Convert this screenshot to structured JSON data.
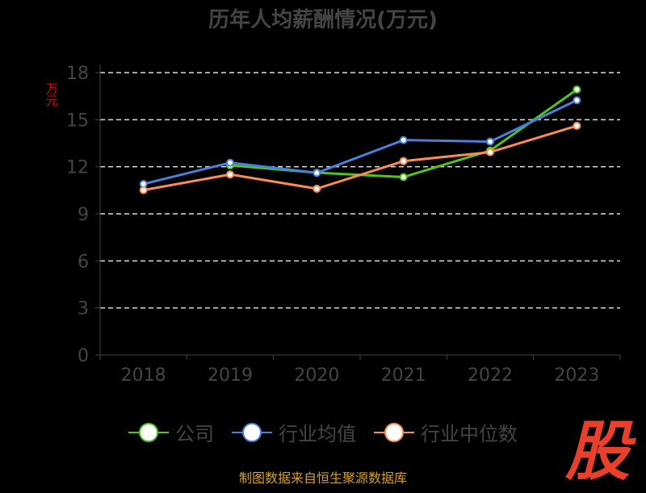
{
  "chart_data": {
    "type": "line",
    "title": "历年人均薪酬情况(万元)",
    "ylabel": "万元",
    "categories": [
      "2018",
      "2019",
      "2020",
      "2021",
      "2022",
      "2023"
    ],
    "ylim": [
      0,
      18
    ],
    "yticks": [
      0,
      3,
      6,
      9,
      12,
      15,
      18
    ],
    "grid": true,
    "legend_position": "bottom",
    "series": [
      {
        "name": "公司",
        "color": "#52c41a",
        "values": [
          null,
          12.09,
          11.62,
          11.34,
          13.03,
          16.92
        ]
      },
      {
        "name": "行业均值",
        "color": "#4a7fdc",
        "values": [
          10.9,
          12.26,
          11.61,
          13.7,
          13.6,
          16.24
        ]
      },
      {
        "name": "行业中位数",
        "color": "#ff8c55",
        "values": [
          10.51,
          11.51,
          10.6,
          12.36,
          12.93,
          14.61
        ]
      }
    ]
  },
  "source": "制图数据来自恒生聚源数据库",
  "logo": "股"
}
